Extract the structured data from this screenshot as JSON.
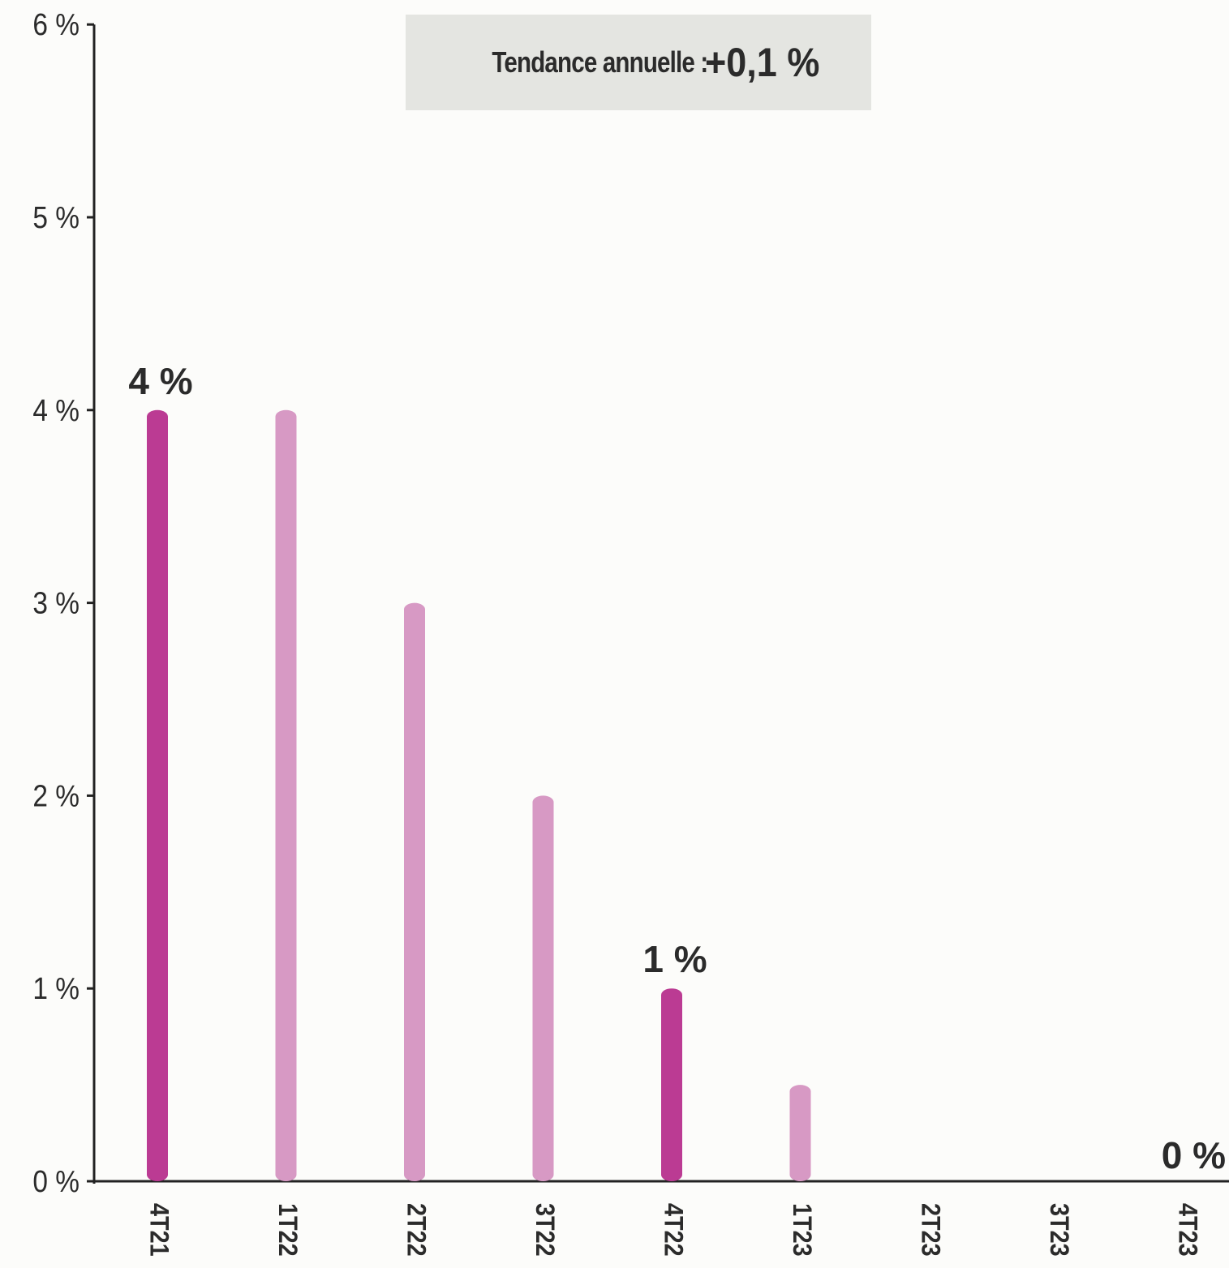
{
  "chart_data": {
    "type": "bar",
    "categories": [
      "4T21",
      "1T22",
      "2T22",
      "3T22",
      "4T22",
      "1T23",
      "2T23",
      "3T23",
      "4T23"
    ],
    "values": [
      4,
      4,
      3,
      2,
      1,
      0.5,
      0,
      0,
      0
    ],
    "highlighted": [
      true,
      false,
      false,
      false,
      true,
      false,
      false,
      false,
      false
    ],
    "data_labels": [
      {
        "category": "4T21",
        "text": "4 %"
      },
      {
        "category": "4T22",
        "text": "1 %"
      },
      {
        "category": "4T23",
        "text": "0 %"
      }
    ],
    "y_ticks": [
      {
        "value": 0,
        "label": "0 %"
      },
      {
        "value": 1,
        "label": "1 %"
      },
      {
        "value": 2,
        "label": "2 %"
      },
      {
        "value": 3,
        "label": "3 %"
      },
      {
        "value": 4,
        "label": "4 %"
      },
      {
        "value": 5,
        "label": "5 %"
      },
      {
        "value": 6,
        "label": "6 %"
      }
    ],
    "ylim": [
      0,
      6
    ],
    "grid": false,
    "title": "",
    "xlabel": "",
    "ylabel": "",
    "colors": {
      "highlight": "#bb3b93",
      "normal": "#d799c4",
      "axis": "#222222",
      "text": "#2b2b2b",
      "box": "#e4e5e1",
      "background": "#fcfcfa"
    }
  },
  "trend_box": {
    "label": "Tendance annuelle :",
    "value": "+0,1 %"
  }
}
